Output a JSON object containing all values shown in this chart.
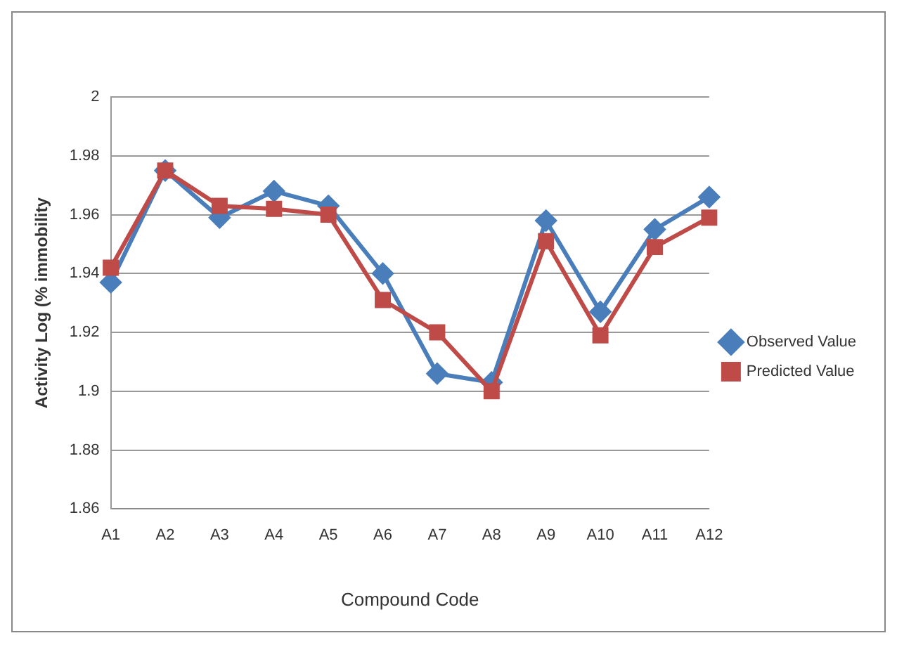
{
  "chart_data": {
    "type": "line",
    "xlabel": "Compound Code",
    "ylabel": "Activity Log (% immobility",
    "categories": [
      "A1",
      "A2",
      "A3",
      "A4",
      "A5",
      "A6",
      "A7",
      "A8",
      "A9",
      "A10",
      "A11",
      "A12"
    ],
    "series": [
      {
        "name": "Observed Value",
        "color": "#4a7ebb",
        "marker": "diamond",
        "values": [
          1.937,
          1.975,
          1.959,
          1.968,
          1.963,
          1.94,
          1.906,
          1.903,
          1.958,
          1.927,
          1.955,
          1.966
        ]
      },
      {
        "name": "Predicted Value",
        "color": "#be4b48",
        "marker": "square",
        "values": [
          1.942,
          1.975,
          1.963,
          1.962,
          1.96,
          1.931,
          1.92,
          1.9,
          1.951,
          1.919,
          1.949,
          1.959
        ]
      }
    ],
    "ylim": [
      1.86,
      2
    ],
    "yticks": [
      1.86,
      1.88,
      1.9,
      1.92,
      1.94,
      1.96,
      1.98,
      2
    ],
    "grid": "y",
    "legend": "right"
  }
}
